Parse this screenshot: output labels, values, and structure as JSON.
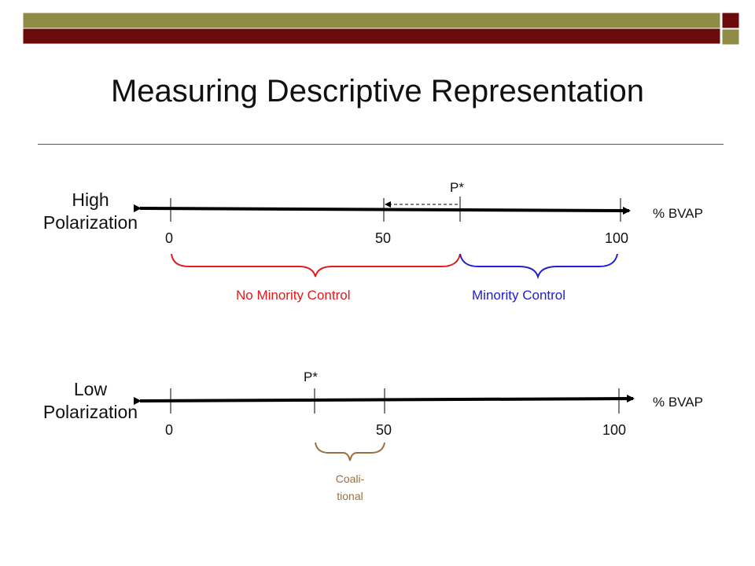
{
  "title": "Measuring Descriptive Representation",
  "colors": {
    "header_olive": "#8e8c44",
    "header_maroon": "#6b0b0b",
    "no_minority": "#e31b1b",
    "minority": "#1e22cc",
    "coalitional": "#9c6f3f"
  },
  "high": {
    "label_line1": "High",
    "label_line2": "Polarization",
    "ticks": [
      "0",
      "50",
      "100"
    ],
    "axis_label": "% BVAP",
    "pstar": "P*",
    "no_minority_label": "No Minority Control",
    "minority_label": "Minority Control"
  },
  "low": {
    "label_line1": "Low",
    "label_line2": "Polarization",
    "ticks": [
      "0",
      "50",
      "100"
    ],
    "axis_label": "% BVAP",
    "pstar": "P*",
    "coalitional_line1": "Coali-",
    "coalitional_line2": "tional"
  }
}
